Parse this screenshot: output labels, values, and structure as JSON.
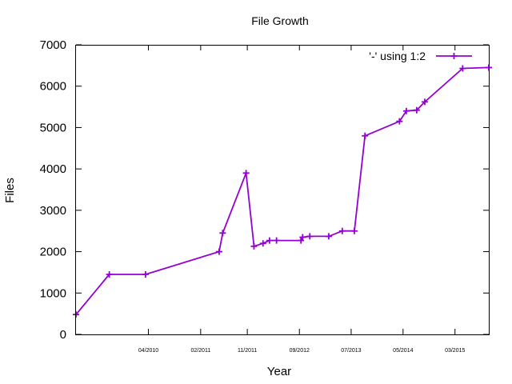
{
  "chart_data": {
    "type": "line",
    "title": "File Growth",
    "xlabel": "Year",
    "ylabel": "Files",
    "ylim": [
      0,
      7000
    ],
    "yticks": [
      "0",
      "1000",
      "2000",
      "3000",
      "4000",
      "5000",
      "6000",
      "7000"
    ],
    "xlim": [
      "2009-02-01",
      "2015-09-15"
    ],
    "xticks": [
      {
        "date": "2010-04-01",
        "label": "04/2010"
      },
      {
        "date": "2011-02-01",
        "label": "02/2011"
      },
      {
        "date": "2011-11-01",
        "label": "11/2011"
      },
      {
        "date": "2012-09-01",
        "label": "09/2012"
      },
      {
        "date": "2013-07-01",
        "label": "07/2013"
      },
      {
        "date": "2014-05-01",
        "label": "05/2014"
      },
      {
        "date": "2015-03-01",
        "label": "03/2015"
      }
    ],
    "grid": false,
    "legend_position": "top-right",
    "series": [
      {
        "name": "'-' using 1:2",
        "color": "#9400d3",
        "marker": "plus",
        "points": [
          {
            "x": "2009-02-01",
            "y": 480
          },
          {
            "x": "2009-08-15",
            "y": 1450
          },
          {
            "x": "2010-03-15",
            "y": 1450
          },
          {
            "x": "2011-05-20",
            "y": 2000
          },
          {
            "x": "2011-06-10",
            "y": 2450
          },
          {
            "x": "2011-10-25",
            "y": 3900
          },
          {
            "x": "2011-12-10",
            "y": 2130
          },
          {
            "x": "2012-02-01",
            "y": 2200
          },
          {
            "x": "2012-03-10",
            "y": 2270
          },
          {
            "x": "2012-04-20",
            "y": 2270
          },
          {
            "x": "2012-09-10",
            "y": 2270
          },
          {
            "x": "2012-09-20",
            "y": 2350
          },
          {
            "x": "2012-11-01",
            "y": 2370
          },
          {
            "x": "2013-02-20",
            "y": 2370
          },
          {
            "x": "2013-05-10",
            "y": 2500
          },
          {
            "x": "2013-07-20",
            "y": 2500
          },
          {
            "x": "2013-09-20",
            "y": 4800
          },
          {
            "x": "2014-04-10",
            "y": 5150
          },
          {
            "x": "2014-05-20",
            "y": 5400
          },
          {
            "x": "2014-07-20",
            "y": 5420
          },
          {
            "x": "2014-09-05",
            "y": 5620
          },
          {
            "x": "2015-04-15",
            "y": 6430
          },
          {
            "x": "2015-09-15",
            "y": 6450
          }
        ]
      }
    ]
  }
}
